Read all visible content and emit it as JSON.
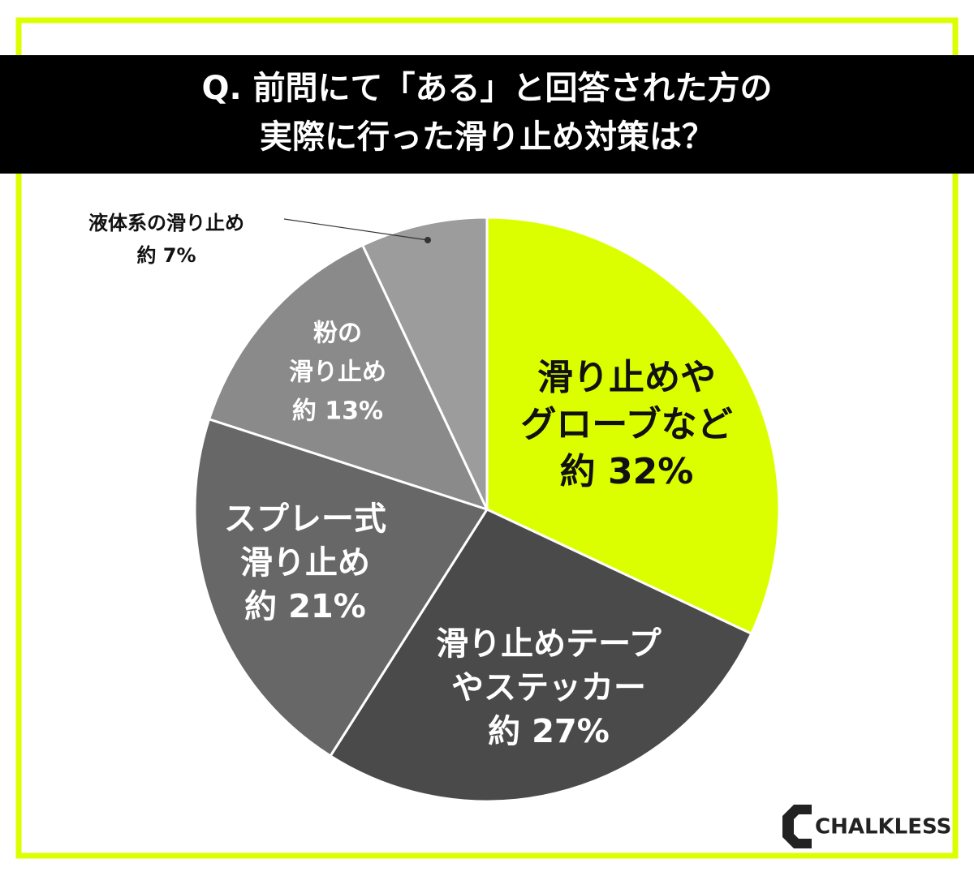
{
  "chart_data": {
    "type": "pie",
    "title": [
      "Q. 前問にて「ある」と回答された方の",
      "実際に行った滑り止め対策は？"
    ],
    "categories": [
      [
        "滑り止めや",
        "グローブなど"
      ],
      [
        "滑り止めテープ",
        "やステッカー"
      ],
      [
        "スプレー式",
        "滑り止め"
      ],
      [
        "粉の",
        "滑り止め"
      ],
      [
        "液体系の滑り止め"
      ]
    ],
    "values": [
      32,
      27,
      21,
      13,
      7
    ],
    "value_labels": [
      "約 32%",
      "約 27%",
      "約 21%",
      "約 13%",
      "約 7%"
    ],
    "colors": [
      "#dcff00",
      "#4a4a4a",
      "#676767",
      "#8a8a8a",
      "#9c9c9c"
    ],
    "brand": "CHALKLESS"
  }
}
